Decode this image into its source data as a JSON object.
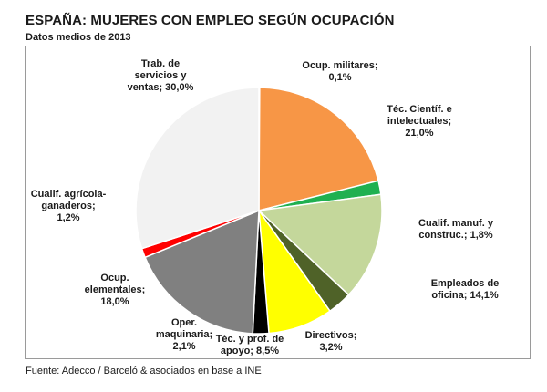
{
  "title": "ESPAÑA: MUJERES CON EMPLEO SEGÚN OCUPACIÓN",
  "subtitle": "Datos medios de 2013",
  "source": "Fuente: Adecco / Barceló & asociados en base a INE",
  "chart_data": {
    "type": "pie",
    "start": "12 o'clock",
    "direction": "clockwise",
    "legend": "none",
    "slices": [
      {
        "label": "Ocup. militares; 0,1%",
        "value": 0.1,
        "color": "#4f81bd"
      },
      {
        "label": "Téc. Científ. e intelectuales; 21,0%",
        "value": 21.0,
        "color": "#f79646"
      },
      {
        "label": "Cualif. manuf. y construc.; 1,8%",
        "value": 1.8,
        "color": "#20b050"
      },
      {
        "label": "Empleados de oficina; 14,1%",
        "value": 14.1,
        "color": "#c4d79b"
      },
      {
        "label": "Directivos; 3,2%",
        "value": 3.2,
        "color": "#4f6228"
      },
      {
        "label": "Téc. y prof. de apoyo; 8,5%",
        "value": 8.5,
        "color": "#ffff00"
      },
      {
        "label": "Oper. maquinaria; 2,1%",
        "value": 2.1,
        "color": "#000000"
      },
      {
        "label": "Ocup. elementales; 18,0%",
        "value": 18.0,
        "color": "#808080"
      },
      {
        "label": "Cualif. agrícola-ganaderos; 1,2%",
        "value": 1.2,
        "color": "#ff0000"
      },
      {
        "label": "Trab. de servicios y ventas; 30,0%",
        "value": 30.0,
        "color": "#f2f2f2"
      }
    ],
    "label_lines": [
      [
        "Ocup. militares;",
        "0,1%"
      ],
      [
        "Téc. Científ. e",
        "intelectuales;",
        "21,0%"
      ],
      [
        "Cualif. manuf. y",
        "construc.; 1,8%"
      ],
      [
        "Empleados de",
        "oficina; 14,1%"
      ],
      [
        "Directivos;",
        "3,2%"
      ],
      [
        "Téc. y prof. de",
        "apoyo; 8,5%"
      ],
      [
        "Oper.",
        "maquinaria;",
        "2,1%"
      ],
      [
        "Ocup.",
        "elementales;",
        "18,0%"
      ],
      [
        "Cualif. agrícola-",
        "ganaderos;",
        "1,2%"
      ],
      [
        "Trab. de",
        "servicios y",
        "ventas; 30,0%"
      ]
    ]
  }
}
